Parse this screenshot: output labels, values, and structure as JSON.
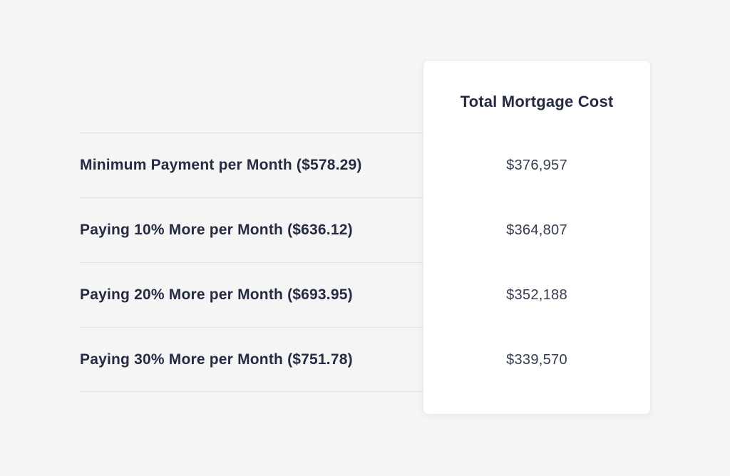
{
  "comparison_table": {
    "value_column_header": "Total Mortgage Cost",
    "rows": [
      {
        "label": "Minimum Payment per Month ($578.29)",
        "total_cost": "$376,957"
      },
      {
        "label": "Paying 10% More per Month ($636.12)",
        "total_cost": "$364,807"
      },
      {
        "label": "Paying 20% More per Month ($693.95)",
        "total_cost": "$352,188"
      },
      {
        "label": "Paying 30% More per Month ($751.78)",
        "total_cost": "$339,570"
      }
    ]
  },
  "colors": {
    "background": "#f5f5f6",
    "card_background": "#ffffff",
    "card_border": "#ebebee",
    "divider": "#e3e3e7",
    "heading_text": "#252b42",
    "value_text": "#353c50"
  }
}
